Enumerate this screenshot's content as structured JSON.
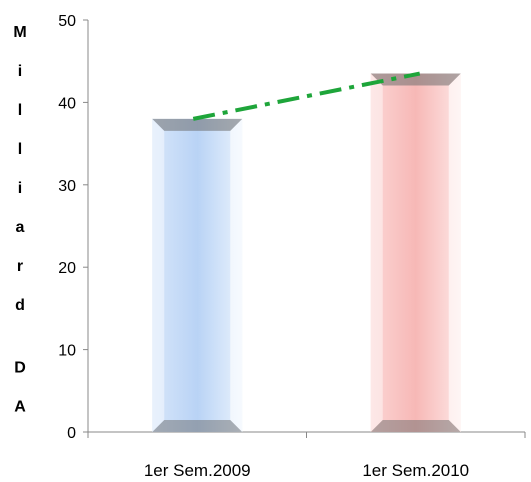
{
  "chart_data": {
    "type": "bar",
    "title": "",
    "xlabel": "",
    "ylabel": "Milliard DA",
    "categories": [
      "1er Sem.2009",
      "1er Sem.2010"
    ],
    "values": [
      38,
      43.5
    ],
    "ylim": [
      0,
      50
    ],
    "yticks": [
      0,
      10,
      20,
      30,
      40,
      50
    ],
    "bar_colors": [
      "#b9d3f5",
      "#f7b8b6"
    ],
    "grid": false,
    "legend": "none",
    "trendline": {
      "type": "dash-dot",
      "color": "#1ea53a",
      "values": [
        38,
        43.5
      ]
    }
  }
}
